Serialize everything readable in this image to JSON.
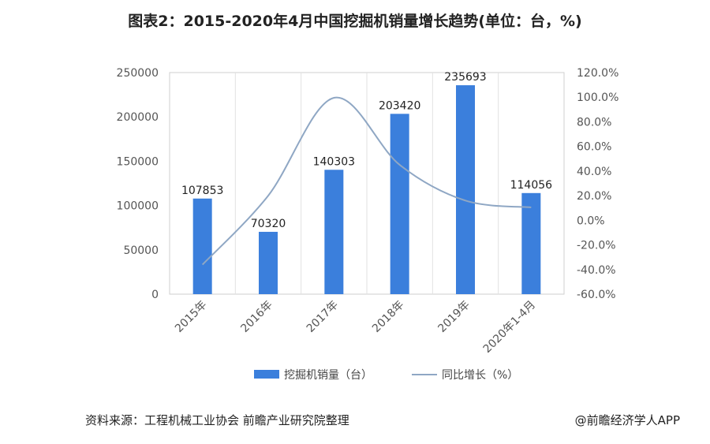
{
  "title": "图表2：2015-2020年4月中国挖掘机销量增长趋势(单位：台，%)",
  "source": "资料来源：工程机械工业协会 前瞻产业研究院整理",
  "credit": "@前瞻经济学人APP",
  "chart_data": {
    "type": "bar",
    "categories": [
      "2015年",
      "2016年",
      "2017年",
      "2018年",
      "2019年",
      "2020年1-4月"
    ],
    "series": [
      {
        "name": "挖掘机销量（台）",
        "type": "bar",
        "axis": "left",
        "values": [
          107853,
          70320,
          140303,
          203420,
          235693,
          114056
        ],
        "color": "#3b7fdc"
      },
      {
        "name": "同比增长（%）",
        "type": "line",
        "axis": "right",
        "values": [
          -36.0,
          20.0,
          99.5,
          45.0,
          16.0,
          10.5
        ],
        "color": "#8fa7c4"
      }
    ],
    "data_labels": [
      "107853",
      "70320",
      "140303",
      "203420",
      "235693",
      "114056"
    ],
    "y_left": {
      "lim": [
        0,
        250000
      ],
      "ticks": [
        "0",
        "50000",
        "100000",
        "150000",
        "200000",
        "250000"
      ]
    },
    "y_right": {
      "lim": [
        -60,
        120
      ],
      "ticks": [
        "-60.0%",
        "-40.0%",
        "-20.0%",
        "0.0%",
        "20.0%",
        "40.0%",
        "60.0%",
        "80.0%",
        "100.0%",
        "120.0%"
      ]
    },
    "grid": true,
    "legend_position": "bottom"
  }
}
